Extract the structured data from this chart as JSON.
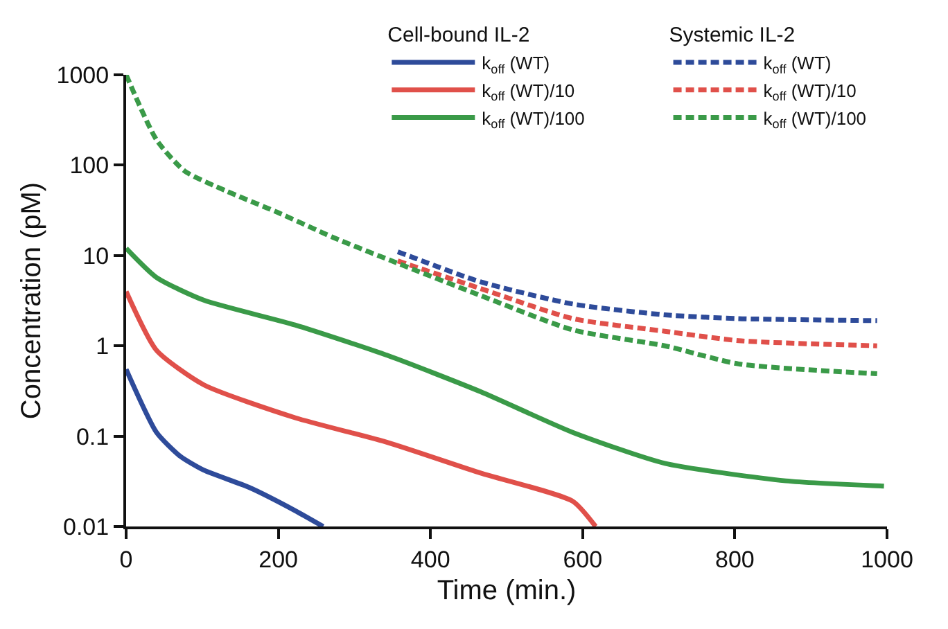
{
  "chart_data": {
    "type": "line",
    "xlabel": "Time (min.)",
    "ylabel": "Concentration (pM)",
    "annotations": [
      "Cell-bound IL-2",
      "Systemic IL-2"
    ],
    "log": "y",
    "xlim": [
      0,
      1000
    ],
    "xticks": [
      0,
      200,
      400,
      600,
      800,
      1000
    ],
    "ylim": [
      0.01,
      1000
    ],
    "yticks": [
      0.01,
      0.1,
      1,
      10,
      100,
      1000
    ],
    "grid": false,
    "legend": "top right",
    "marker": "none",
    "series": [
      {
        "name": "k$_{off}$ (WT)",
        "color": "#2e4b9a",
        "line_style": "solid",
        "x": [
          0,
          40,
          71,
          102,
          162,
          222,
          259
        ],
        "values": [
          0.55,
          0.11,
          0.06,
          0.042,
          0.027,
          0.015,
          0.01
        ]
      },
      {
        "name": "k$_{off}$ (WT)/10",
        "color": "#e0504a",
        "line_style": "solid",
        "x": [
          0,
          40,
          102,
          222,
          344,
          466,
          587,
          617
        ],
        "values": [
          4,
          0.89,
          0.37,
          0.16,
          0.085,
          0.039,
          0.019,
          0.01
        ]
      },
      {
        "name": "k$_{off}$ (WT)/100",
        "color": "#3a9a48",
        "line_style": "solid",
        "x": [
          0,
          40,
          102,
          222,
          344,
          466,
          587,
          708,
          867,
          996
        ],
        "values": [
          12,
          5.7,
          3.2,
          1.7,
          0.78,
          0.31,
          0.11,
          0.05,
          0.032,
          0.028
        ]
      },
      {
        "name": "k$_{off}$ (WT)",
        "color": "#2e4b9a",
        "line_style": "dashed",
        "x": [
          357,
          466,
          587,
          708,
          805,
          987
        ],
        "values": [
          11,
          5.1,
          2.9,
          2.2,
          2,
          1.9
        ]
      },
      {
        "name": "k$_{off}$ (WT)/10",
        "color": "#e0504a",
        "line_style": "dashed",
        "x": [
          357,
          466,
          587,
          708,
          805,
          987
        ],
        "values": [
          8.7,
          4.3,
          2,
          1.45,
          1.14,
          1
        ]
      },
      {
        "name": "k$_{off}$ (WT)/100",
        "color": "#3a9a48",
        "line_style": "dashed",
        "x": [
          0,
          40,
          77,
          131,
          199,
          271,
          357,
          466,
          587,
          708,
          805,
          987
        ],
        "values": [
          1000,
          190,
          86,
          52,
          30,
          16,
          8.2,
          3.6,
          1.5,
          1,
          0.63,
          0.49
        ]
      }
    ]
  }
}
